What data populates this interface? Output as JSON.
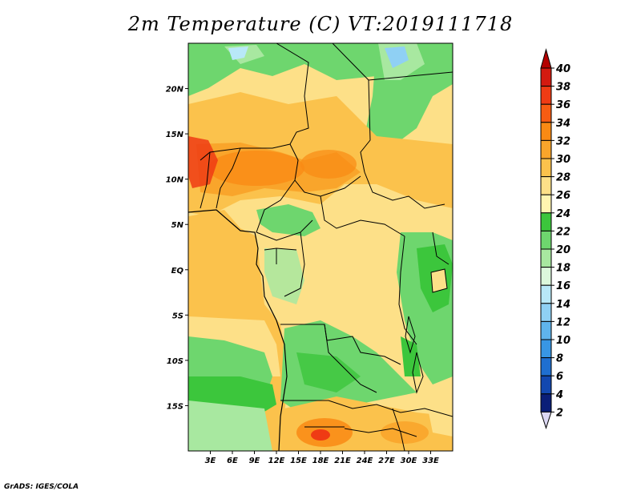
{
  "title": "2m Temperature (C)  VT:2019111718",
  "footer": "GrADS: IGES/COLA",
  "map": {
    "lon_range": [
      0,
      36
    ],
    "lat_range": [
      -20,
      25
    ],
    "x_ticks": [
      "3E",
      "6E",
      "9E",
      "12E",
      "15E",
      "18E",
      "21E",
      "24E",
      "27E",
      "30E",
      "33E"
    ],
    "y_ticks": [
      "20N",
      "15N",
      "10N",
      "5N",
      "EQ",
      "5S",
      "10S",
      "15S"
    ]
  },
  "colorbar": {
    "levels": [
      "40",
      "38",
      "36",
      "34",
      "32",
      "30",
      "28",
      "26",
      "24",
      "22",
      "20",
      "18",
      "16",
      "14",
      "12",
      "10",
      "8",
      "6",
      "4",
      "2"
    ],
    "colors_top_to_bottom": [
      "#b40000",
      "#d31a10",
      "#ef3b14",
      "#f75c12",
      "#f98a14",
      "#f9a52b",
      "#fbc24c",
      "#fde088",
      "#fff5b0",
      "#3cc63c",
      "#6ed66e",
      "#a8e8a0",
      "#dcf8dc",
      "#b8e8f8",
      "#8fd0f4",
      "#5fb4ec",
      "#3896e4",
      "#1f6fd0",
      "#1248b0",
      "#0a1e78",
      "#dcd8f4"
    ]
  }
}
